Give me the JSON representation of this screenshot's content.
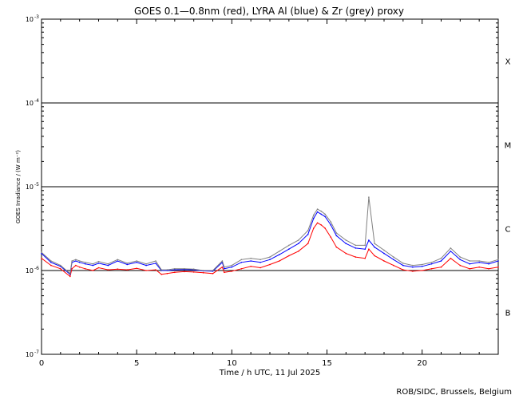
{
  "chart_data": {
    "type": "line",
    "title": "GOES 0.1—0.8nm (red), LYRA Al (blue) & Zr (grey) proxy",
    "xlabel": "Time / h UTC, 11 Jul 2025",
    "ylabel": "GOES Irradiance / (W m⁻²)",
    "xlim": [
      0,
      24
    ],
    "ylim": [
      1e-07,
      0.001
    ],
    "y_scale": "log",
    "x_ticks": [
      0,
      5,
      10,
      15,
      20
    ],
    "y_ticks": [
      {
        "value": 1e-07,
        "base": "10",
        "exp": "-7"
      },
      {
        "value": 1e-06,
        "base": "10",
        "exp": "-6"
      },
      {
        "value": 1e-05,
        "base": "10",
        "exp": "-5"
      },
      {
        "value": 0.0001,
        "base": "10",
        "exp": "-4"
      },
      {
        "value": 0.001,
        "base": "10",
        "exp": "-3"
      }
    ],
    "flare_class_lines": [
      1e-06,
      1e-05,
      0.0001
    ],
    "flare_classes": [
      {
        "label": "B",
        "y": 3.16e-07
      },
      {
        "label": "C",
        "y": 3.16e-06
      },
      {
        "label": "M",
        "y": 3.16e-05
      },
      {
        "label": "X",
        "y": 0.000316
      }
    ],
    "series": [
      {
        "name": "GOES 0.1—0.8nm",
        "color": "#ff0000",
        "x": [
          0,
          0.5,
          1.0,
          1.5,
          1.6,
          1.8,
          2.0,
          2.3,
          2.7,
          3.0,
          3.5,
          4.0,
          4.5,
          5.0,
          5.5,
          6.0,
          6.3,
          6.6,
          7.0,
          7.5,
          8.0,
          8.5,
          9.0,
          9.5,
          9.6,
          10.0,
          10.5,
          11.0,
          11.5,
          12.0,
          12.5,
          13.0,
          13.5,
          14.0,
          14.3,
          14.5,
          14.7,
          14.9,
          15.2,
          15.5,
          16.0,
          16.5,
          17.0,
          17.2,
          17.5,
          18.0,
          18.5,
          19.0,
          19.5,
          20.0,
          20.5,
          21.0,
          21.5,
          22.0,
          22.5,
          23.0,
          23.5,
          24.0
        ],
        "values": [
          1.4e-06,
          1.15e-06,
          1.05e-06,
          8.5e-07,
          1.05e-06,
          1.15e-06,
          1.1e-06,
          1.05e-06,
          1e-06,
          1.08e-06,
          1.02e-06,
          1.04e-06,
          1.02e-06,
          1.06e-06,
          1e-06,
          1.02e-06,
          9e-07,
          9.2e-07,
          9.5e-07,
          9.7e-07,
          9.6e-07,
          9.4e-07,
          9.2e-07,
          1.1e-06,
          9.5e-07,
          9.8e-07,
          1.05e-06,
          1.12e-06,
          1.08e-06,
          1.18e-06,
          1.3e-06,
          1.5e-06,
          1.7e-06,
          2.1e-06,
          3.2e-06,
          3.7e-06,
          3.5e-06,
          3.2e-06,
          2.5e-06,
          1.9e-06,
          1.6e-06,
          1.45e-06,
          1.4e-06,
          1.8e-06,
          1.5e-06,
          1.3e-06,
          1.15e-06,
          1.02e-06,
          9.8e-07,
          1e-06,
          1.05e-06,
          1.1e-06,
          1.4e-06,
          1.15e-06,
          1.05e-06,
          1.1e-06,
          1.05e-06,
          1.1e-06
        ]
      },
      {
        "name": "LYRA Al",
        "color": "#0000ff",
        "x": [
          0,
          0.5,
          1.0,
          1.5,
          1.6,
          1.8,
          2.0,
          2.3,
          2.7,
          3.0,
          3.5,
          4.0,
          4.5,
          5.0,
          5.5,
          6.0,
          6.3,
          6.6,
          7.0,
          7.5,
          8.0,
          8.5,
          9.0,
          9.5,
          9.6,
          10.0,
          10.5,
          11.0,
          11.5,
          12.0,
          12.5,
          13.0,
          13.5,
          14.0,
          14.3,
          14.5,
          14.7,
          14.9,
          15.2,
          15.5,
          16.0,
          16.5,
          17.0,
          17.2,
          17.5,
          18.0,
          18.5,
          19.0,
          19.5,
          20.0,
          20.5,
          21.0,
          21.5,
          22.0,
          22.5,
          23.0,
          23.5,
          24.0
        ],
        "values": [
          1.6e-06,
          1.25e-06,
          1.12e-06,
          9e-07,
          1.25e-06,
          1.3e-06,
          1.25e-06,
          1.2e-06,
          1.15e-06,
          1.22e-06,
          1.15e-06,
          1.3e-06,
          1.18e-06,
          1.25e-06,
          1.15e-06,
          1.22e-06,
          1e-06,
          1e-06,
          1.02e-06,
          1.03e-06,
          1.02e-06,
          9.9e-07,
          9.8e-07,
          1.25e-06,
          1.05e-06,
          1.1e-06,
          1.25e-06,
          1.3e-06,
          1.25e-06,
          1.35e-06,
          1.55e-06,
          1.8e-06,
          2.1e-06,
          2.7e-06,
          4.2e-06,
          5e-06,
          4.7e-06,
          4.4e-06,
          3.5e-06,
          2.6e-06,
          2.1e-06,
          1.85e-06,
          1.8e-06,
          2.3e-06,
          1.9e-06,
          1.6e-06,
          1.35e-06,
          1.15e-06,
          1.1e-06,
          1.12e-06,
          1.2e-06,
          1.3e-06,
          1.7e-06,
          1.35e-06,
          1.2e-06,
          1.25e-06,
          1.2e-06,
          1.3e-06
        ]
      },
      {
        "name": "Zr",
        "color": "#808080",
        "x": [
          0,
          0.5,
          1.0,
          1.5,
          1.6,
          1.8,
          2.0,
          2.3,
          2.7,
          3.0,
          3.5,
          4.0,
          4.5,
          5.0,
          5.5,
          6.0,
          6.3,
          6.6,
          7.0,
          7.5,
          8.0,
          8.5,
          9.0,
          9.5,
          9.6,
          10.0,
          10.5,
          11.0,
          11.5,
          12.0,
          12.5,
          13.0,
          13.5,
          14.0,
          14.3,
          14.5,
          14.7,
          14.9,
          15.2,
          15.5,
          16.0,
          16.5,
          17.0,
          17.2,
          17.5,
          18.0,
          18.5,
          19.0,
          19.5,
          20.0,
          20.5,
          21.0,
          21.5,
          22.0,
          22.5,
          23.0,
          23.5,
          24.0
        ],
        "values": [
          1.65e-06,
          1.3e-06,
          1.15e-06,
          9.2e-07,
          1.3e-06,
          1.35e-06,
          1.3e-06,
          1.25e-06,
          1.2e-06,
          1.28e-06,
          1.2e-06,
          1.35e-06,
          1.22e-06,
          1.3e-06,
          1.2e-06,
          1.3e-06,
          1.02e-06,
          1.02e-06,
          1.05e-06,
          1.05e-06,
          1.04e-06,
          1e-06,
          1e-06,
          1.3e-06,
          1.1e-06,
          1.15e-06,
          1.35e-06,
          1.4e-06,
          1.35e-06,
          1.45e-06,
          1.7e-06,
          2e-06,
          2.3e-06,
          3e-06,
          4.6e-06,
          5.4e-06,
          5.1e-06,
          4.7e-06,
          3.8e-06,
          2.8e-06,
          2.3e-06,
          2e-06,
          2e-06,
          7.5e-06,
          2.1e-06,
          1.75e-06,
          1.45e-06,
          1.22e-06,
          1.15e-06,
          1.18e-06,
          1.25e-06,
          1.4e-06,
          1.85e-06,
          1.45e-06,
          1.3e-06,
          1.3e-06,
          1.25e-06,
          1.35e-06
        ]
      }
    ]
  },
  "credit": "ROB/SIDC, Brussels, Belgium"
}
